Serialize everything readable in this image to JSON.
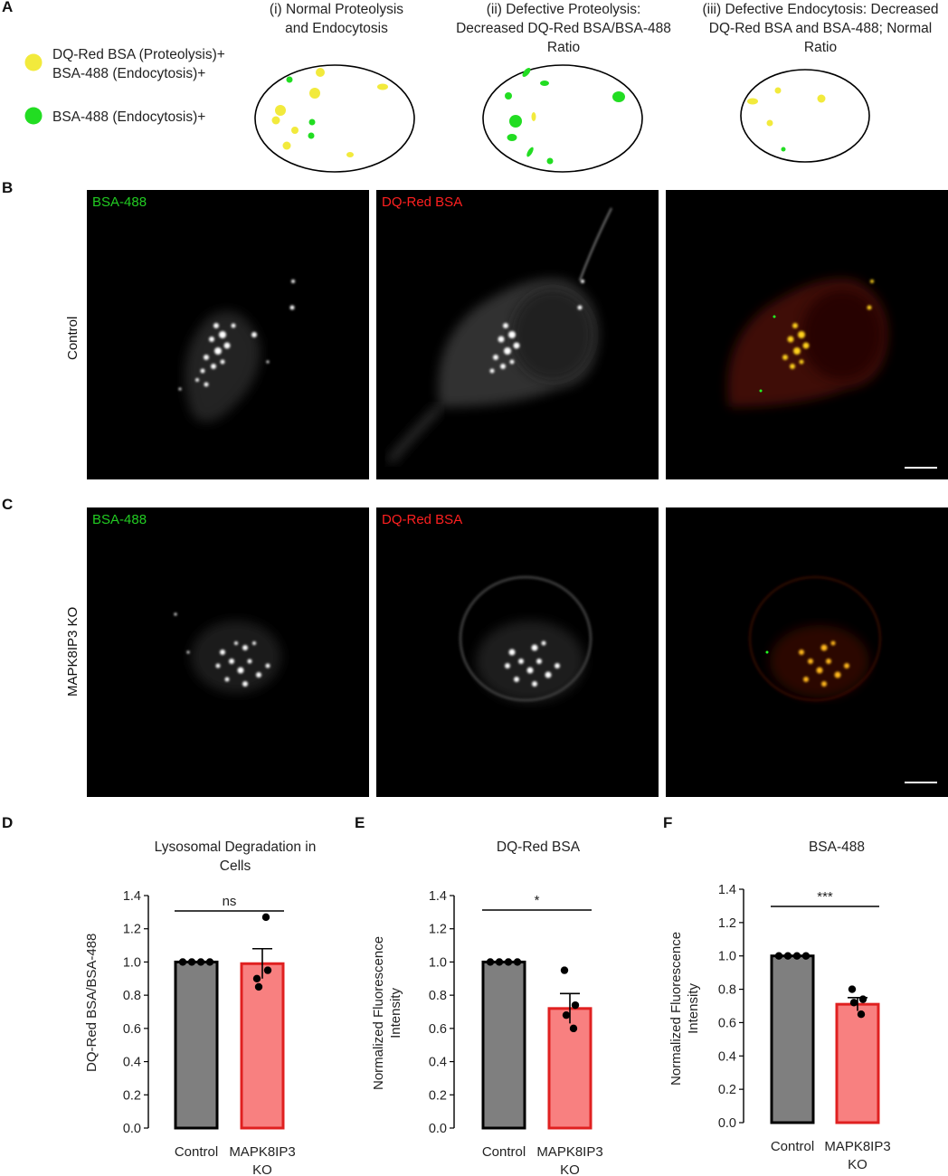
{
  "panel_labels": {
    "a": "A",
    "b": "B",
    "c": "C",
    "d": "D",
    "e": "E",
    "f": "F"
  },
  "schematic": {
    "legend": [
      {
        "line1": "DQ-Red BSA (Proteolysis)+",
        "line2": "BSA-488 (Endocytosis)+",
        "color": "#f2ea3c",
        "icon": "yellow-dot-icon"
      },
      {
        "line1": "BSA-488 (Endocytosis)+",
        "line2": "",
        "color": "#22dd22",
        "icon": "green-dot-icon"
      }
    ],
    "cells": [
      {
        "title_lines": [
          "(i) Normal Proteolysis",
          "and Endocytosis"
        ]
      },
      {
        "title_lines": [
          "(ii) Defective Proteolysis:",
          "Decreased DQ-Red BSA/BSA-488",
          "Ratio"
        ]
      },
      {
        "title_lines": [
          "(iii) Defective Endocytosis: Decreased",
          "DQ-Red BSA and BSA-488; Normal",
          "Ratio"
        ]
      }
    ],
    "colors": {
      "yellow": "#f2ea3c",
      "green": "#22dd22"
    }
  },
  "micrographs": {
    "rows": [
      {
        "row_label": "Control",
        "channels": [
          {
            "label": "BSA-488",
            "color": "#22cc22"
          },
          {
            "label": "DQ-Red BSA",
            "color": "#ff2020"
          },
          {
            "label": "",
            "color": ""
          }
        ]
      },
      {
        "row_label": "MAPK8IP3 KO",
        "channels": [
          {
            "label": "BSA-488",
            "color": "#22cc22"
          },
          {
            "label": "DQ-Red BSA",
            "color": "#ff2020"
          },
          {
            "label": "",
            "color": ""
          }
        ]
      }
    ]
  },
  "chart_data": [
    {
      "type": "bar",
      "title_lines": [
        "Lysosomal Degradation in",
        "Cells"
      ],
      "ylabel_lines": [
        "DQ-Red BSA/BSA-488"
      ],
      "categories": [
        [
          "Control"
        ],
        [
          "MAPK8IP3",
          "KO"
        ]
      ],
      "values": [
        1.0,
        0.99
      ],
      "sem": [
        0.0,
        0.09
      ],
      "points": [
        [
          1.0,
          1.0,
          1.0,
          1.0
        ],
        [
          0.9,
          0.95,
          0.85,
          1.27
        ]
      ],
      "ylim": [
        0.0,
        1.4
      ],
      "yticks": [
        "0.0",
        "0.2",
        "0.4",
        "0.6",
        "0.8",
        "1.0",
        "1.2",
        "1.4"
      ],
      "significance": "ns",
      "bar_fill": [
        "#7f7f7f",
        "#f88080"
      ],
      "bar_edge": [
        "#000000",
        "#e02020"
      ]
    },
    {
      "type": "bar",
      "title_lines": [
        "DQ-Red BSA"
      ],
      "ylabel_lines": [
        "Normalized Fluorescence",
        "Intensity"
      ],
      "categories": [
        [
          "Control"
        ],
        [
          "MAPK8IP3",
          "KO"
        ]
      ],
      "values": [
        1.0,
        0.72
      ],
      "sem": [
        0.0,
        0.09
      ],
      "points": [
        [
          1.0,
          1.0,
          1.0,
          1.0
        ],
        [
          0.95,
          0.74,
          0.68,
          0.6
        ]
      ],
      "ylim": [
        0.0,
        1.4
      ],
      "yticks": [
        "0.0",
        "0.2",
        "0.4",
        "0.6",
        "0.8",
        "1.0",
        "1.2",
        "1.4"
      ],
      "significance": "*",
      "bar_fill": [
        "#7f7f7f",
        "#f88080"
      ],
      "bar_edge": [
        "#000000",
        "#e02020"
      ]
    },
    {
      "type": "bar",
      "title_lines": [
        "BSA-488"
      ],
      "ylabel_lines": [
        "Normalized Fluorescence",
        "Intensity"
      ],
      "categories": [
        [
          "Control"
        ],
        [
          "MAPK8IP3",
          "KO"
        ]
      ],
      "values": [
        1.0,
        0.71
      ],
      "sem": [
        0.0,
        0.04
      ],
      "points": [
        [
          1.0,
          1.0,
          1.0,
          1.0
        ],
        [
          0.8,
          0.74,
          0.72,
          0.65
        ]
      ],
      "ylim": [
        0.0,
        1.4
      ],
      "yticks": [
        "0.0",
        "0.2",
        "0.4",
        "0.6",
        "0.8",
        "1.0",
        "1.2",
        "1.4"
      ],
      "significance": "***",
      "bar_fill": [
        "#7f7f7f",
        "#f88080"
      ],
      "bar_edge": [
        "#000000",
        "#e02020"
      ]
    }
  ]
}
